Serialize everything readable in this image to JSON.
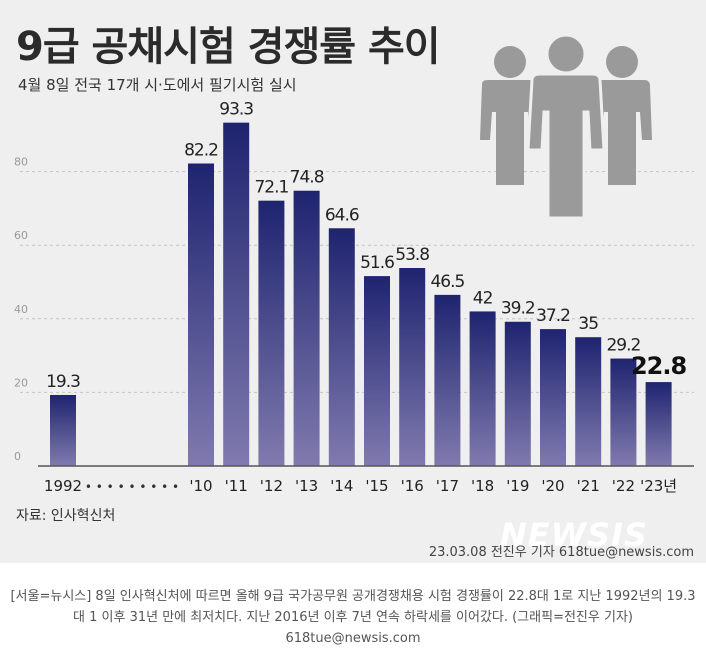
{
  "title": "9급 공채시험 경쟁률 추이",
  "subtitle": "4월 8일 전국 17개 시·도에서 필기시험 실시",
  "source": "자료: 인사혁신처",
  "credit": "23.03.08 전진우 기자 618tue@newsis.com",
  "watermark": "NEWSIS",
  "caption": "[서울=뉴시스] 8일 인사혁신처에 따르면 올해 9급 국가공무원 공개경쟁채용 시험 경쟁률이 22.8대 1로 지난 1992년의 19.3대 1 이후 31년 만에 최저치다. 지난 2016년 이후 7년 연속 하락세를 이어갔다. (그래픽=전진우 기자) 618tue@newsis.com",
  "icon": "people-group-icon",
  "colors": {
    "panel_bg": "#efefef",
    "bar_top": "#1f2470",
    "bar_bottom": "#807aae",
    "icon": "#9a9a9a",
    "last_label": "#111111"
  },
  "chart_data": {
    "type": "bar",
    "title": "9급 공채시험 경쟁률 추이",
    "subtitle": "4월 8일 전국 17개 시·도에서 필기시험 실시",
    "categories": [
      "1992",
      "'10",
      "'11",
      "'12",
      "'13",
      "'14",
      "'15",
      "'16",
      "'17",
      "'18",
      "'19",
      "'20",
      "'21",
      "'22",
      "'23년"
    ],
    "values": [
      19.3,
      82.2,
      93.3,
      72.1,
      74.8,
      64.6,
      51.6,
      53.8,
      46.5,
      42,
      39.2,
      37.2,
      35,
      29.2,
      22.8
    ],
    "value_labels": [
      "19.3",
      "82.2",
      "93.3",
      "72.1",
      "74.8",
      "64.6",
      "51.6",
      "53.8",
      "46.5",
      "42",
      "39.2",
      "37.2",
      "35",
      "29.2",
      "22.8"
    ],
    "yticks": [
      0,
      20,
      40,
      60,
      80
    ],
    "ylim": [
      0,
      100
    ],
    "gap_marker": "• • • • • • • • •",
    "grid": true,
    "legend": "none",
    "xlabel": "",
    "ylabel": ""
  }
}
